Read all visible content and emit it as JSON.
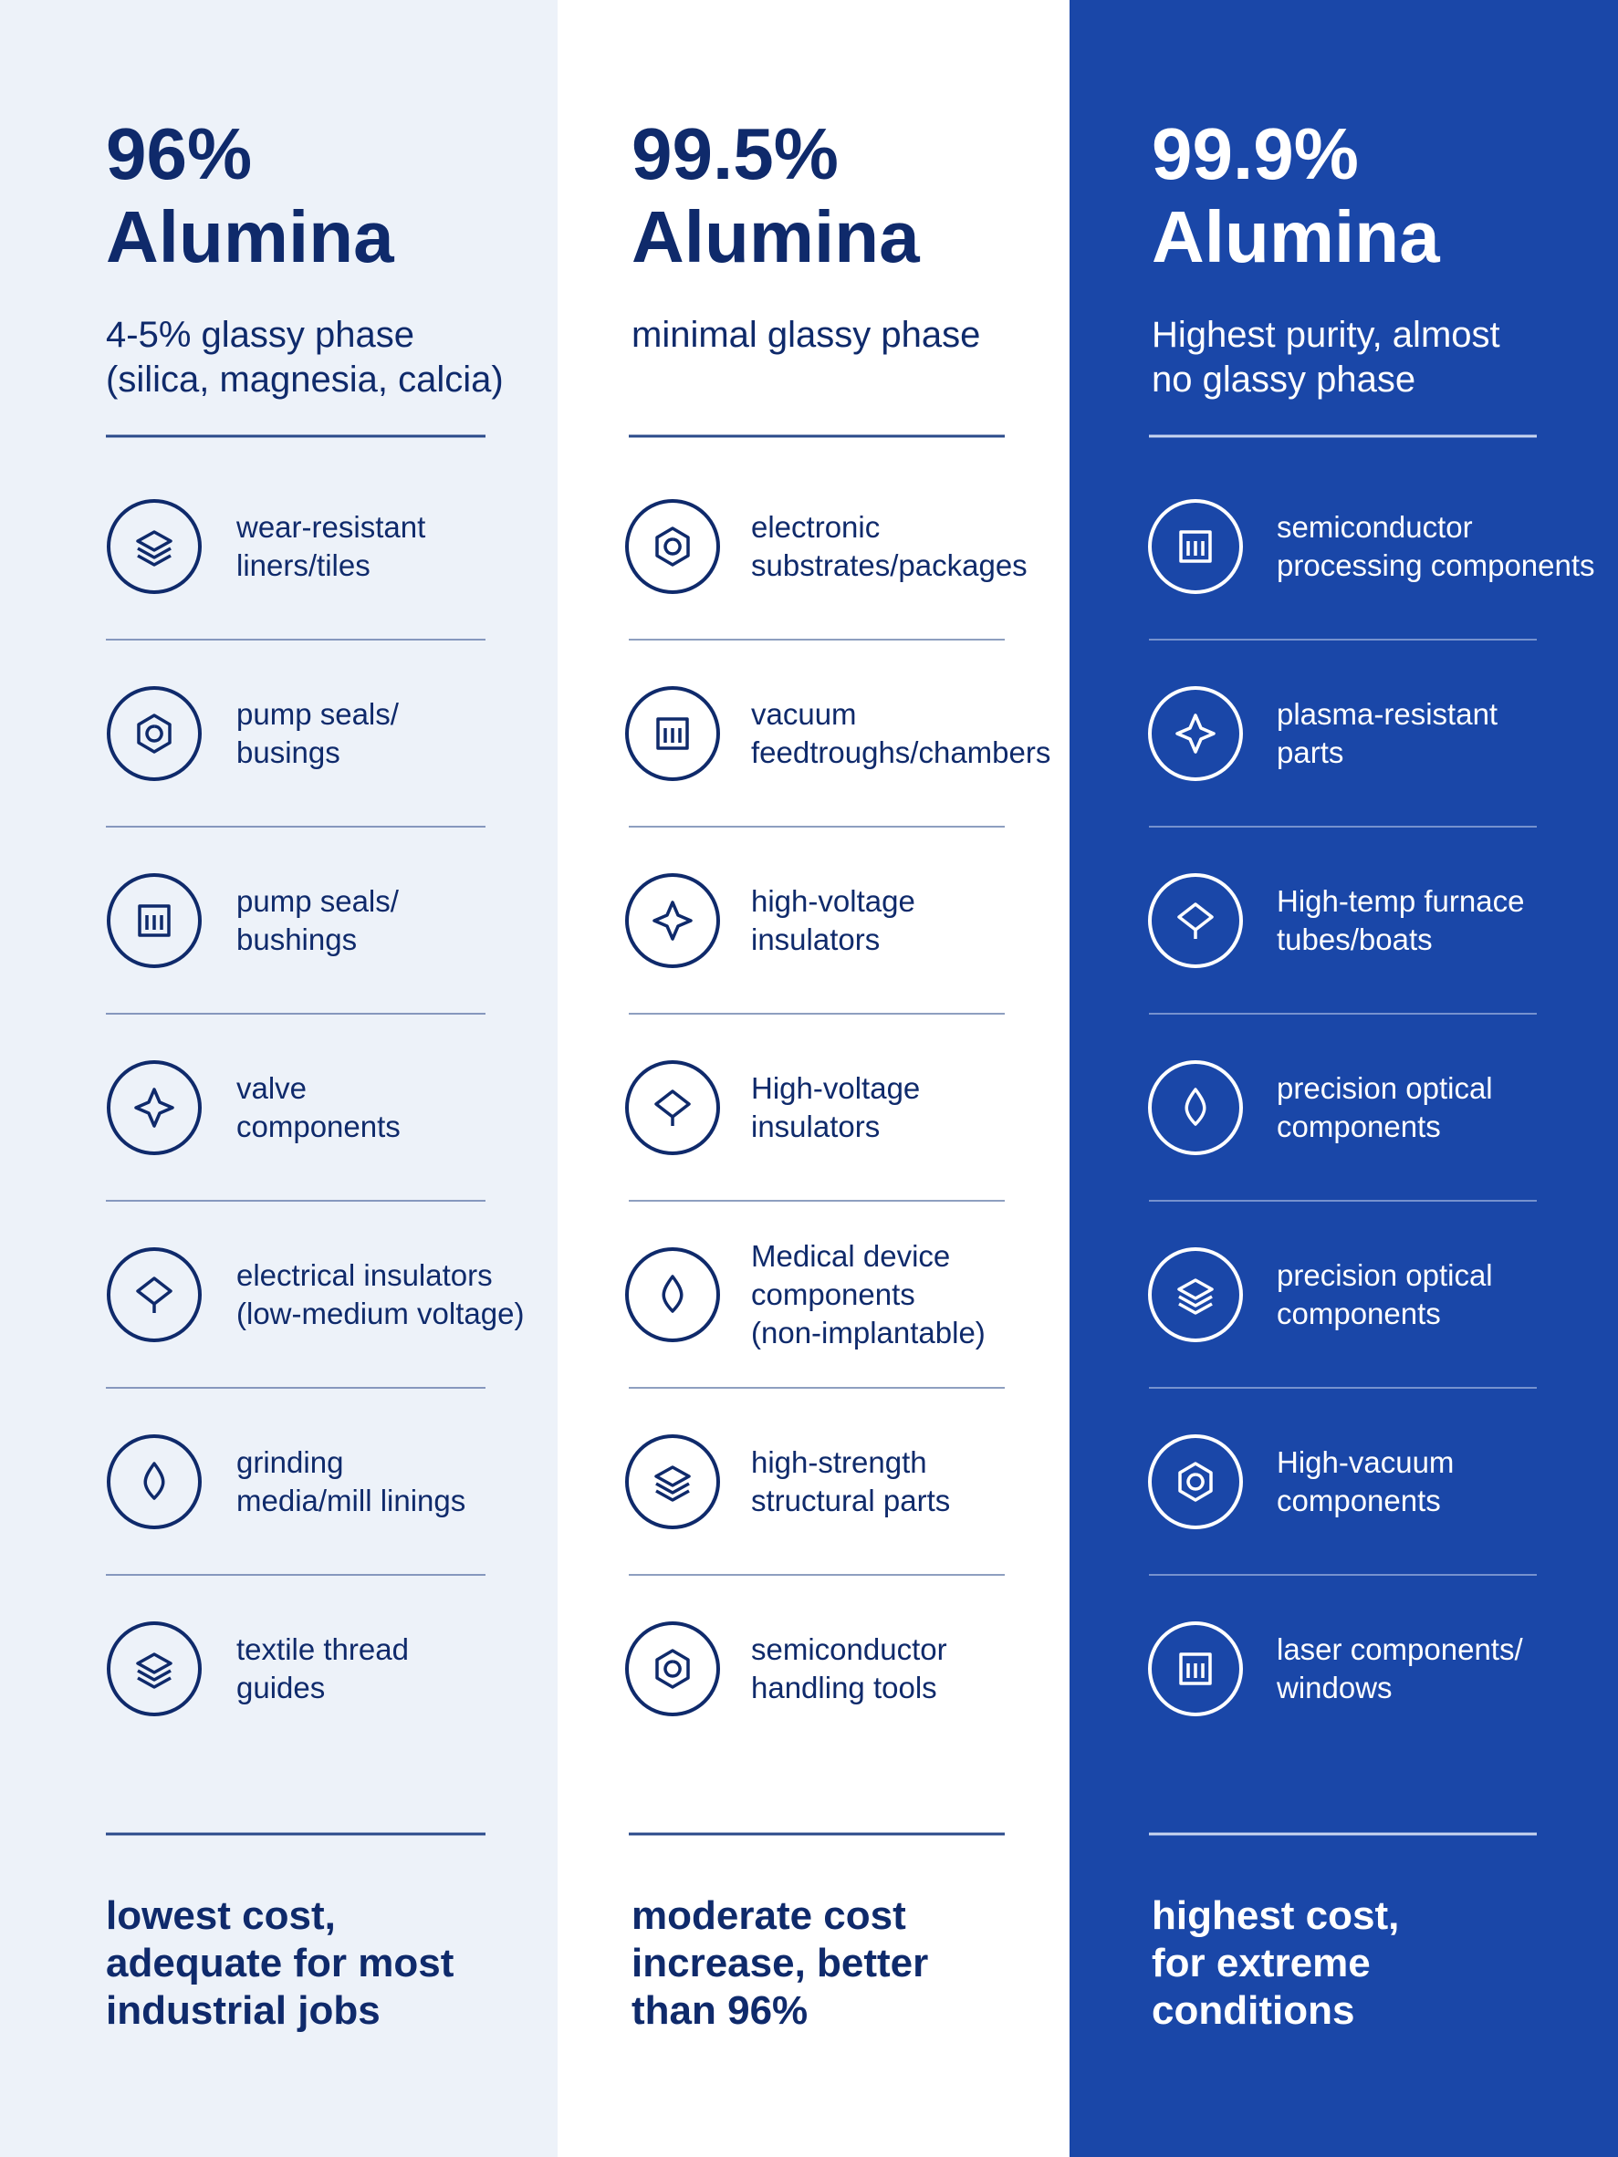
{
  "columns": [
    {
      "title": [
        "96%",
        "Alumina"
      ],
      "subtitle": [
        "4-5% glassy phase",
        "(silica, magnesia, calcia)"
      ],
      "items": [
        [
          "wear-resistant",
          "liners/tiles"
        ],
        [
          "pump seals/",
          "busings"
        ],
        [
          "pump seals/",
          "bushings"
        ],
        [
          "valve",
          "components"
        ],
        [
          "electrical insulators",
          "(low-medium voltage)"
        ],
        [
          "grinding",
          "media/mill linings"
        ],
        [
          "textile thread",
          "guides"
        ]
      ],
      "footer": [
        "lowest cost,",
        "adequate for most",
        "industrial jobs"
      ]
    },
    {
      "title": [
        "99.5%",
        "Alumina"
      ],
      "subtitle": [
        "minimal glassy phase"
      ],
      "items": [
        [
          "electronic",
          "substrates/packages"
        ],
        [
          "vacuum",
          "feedtroughs/chambers"
        ],
        [
          "high-voltage",
          "insulators"
        ],
        [
          "High-voltage",
          "insulators"
        ],
        [
          "Medical device",
          "components",
          "(non-implantable)"
        ],
        [
          "high-strength",
          "structural parts"
        ],
        [
          "semiconductor",
          "handling tools"
        ]
      ],
      "footer": [
        "moderate cost",
        "increase, better",
        "than 96%"
      ]
    },
    {
      "title": [
        "99.9%",
        "Alumina"
      ],
      "subtitle": [
        "Highest purity, almost",
        "no glassy phase"
      ],
      "items": [
        [
          "semiconductor",
          "processing components"
        ],
        [
          "plasma-resistant",
          "parts"
        ],
        [
          "High-temp furnace",
          "tubes/boats"
        ],
        [
          "precision optical",
          "components"
        ],
        [
          "precision optical",
          "components"
        ],
        [
          "High-vacuum",
          "components"
        ],
        [
          "laser components/",
          "windows"
        ]
      ],
      "footer": [
        "highest cost,",
        "for extreme",
        "conditions"
      ]
    }
  ]
}
